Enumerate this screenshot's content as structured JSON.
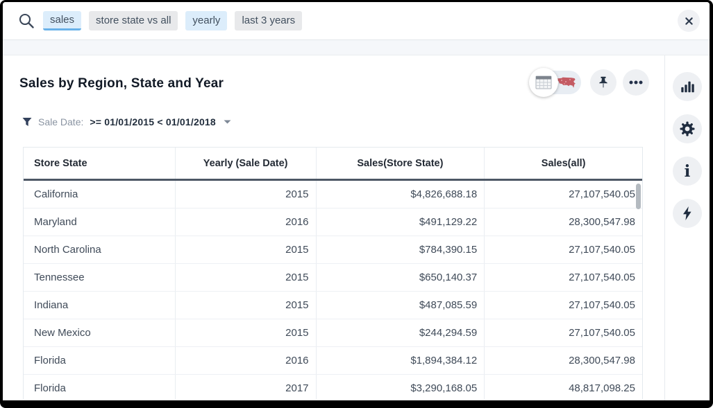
{
  "search": {
    "tokens": [
      {
        "label": "sales",
        "style": "blue",
        "active": true
      },
      {
        "label": "store state vs all",
        "style": "gray",
        "active": false
      },
      {
        "label": "yearly",
        "style": "blue",
        "active": false
      },
      {
        "label": "last 3 years",
        "style": "gray",
        "active": false
      }
    ],
    "icons": {
      "left": "search-icon",
      "right": "close-icon"
    }
  },
  "answer": {
    "title": "Sales by Region, State and Year",
    "filter": {
      "label": "Sale Date:",
      "value": ">= 01/01/2015 < 01/01/2018"
    }
  },
  "toolbar": {
    "view_toggle": {
      "options": [
        "table-view",
        "map-view"
      ],
      "selected": "table-view"
    },
    "icons": [
      "pin-icon",
      "more-options-icon"
    ]
  },
  "table": {
    "columns": [
      {
        "label": "Store State",
        "align": "left"
      },
      {
        "label": "Yearly (Sale Date)",
        "align": "center"
      },
      {
        "label": "Sales(Store State)",
        "align": "center"
      },
      {
        "label": "Sales(all)",
        "align": "center"
      }
    ],
    "rows": [
      [
        "California",
        "2015",
        "$4,826,688.18",
        "27,107,540.05"
      ],
      [
        "Maryland",
        "2016",
        "$491,129.22",
        "28,300,547.98"
      ],
      [
        "North Carolina",
        "2015",
        "$784,390.15",
        "27,107,540.05"
      ],
      [
        "Tennessee",
        "2015",
        "$650,140.37",
        "27,107,540.05"
      ],
      [
        "Indiana",
        "2015",
        "$487,085.59",
        "27,107,540.05"
      ],
      [
        "New Mexico",
        "2015",
        "$244,294.59",
        "27,107,540.05"
      ],
      [
        "Florida",
        "2016",
        "$1,894,384.12",
        "28,300,547.98"
      ],
      [
        "Florida",
        "2017",
        "$3,290,168.05",
        "48,817,098.25"
      ]
    ]
  },
  "sidebar": {
    "icons": [
      "chart-icon",
      "gear-icon",
      "info-icon",
      "lightning-icon"
    ]
  },
  "colors": {
    "accent_blue": "#68b1e9",
    "token_blue_bg": "#dcedfb",
    "token_gray_bg": "#e8e9eb",
    "map_red": "#c04e57",
    "header_underline": "#4d5765",
    "icon_navy": "#1f2c3f",
    "strip_bg": "#f5f7fa"
  }
}
